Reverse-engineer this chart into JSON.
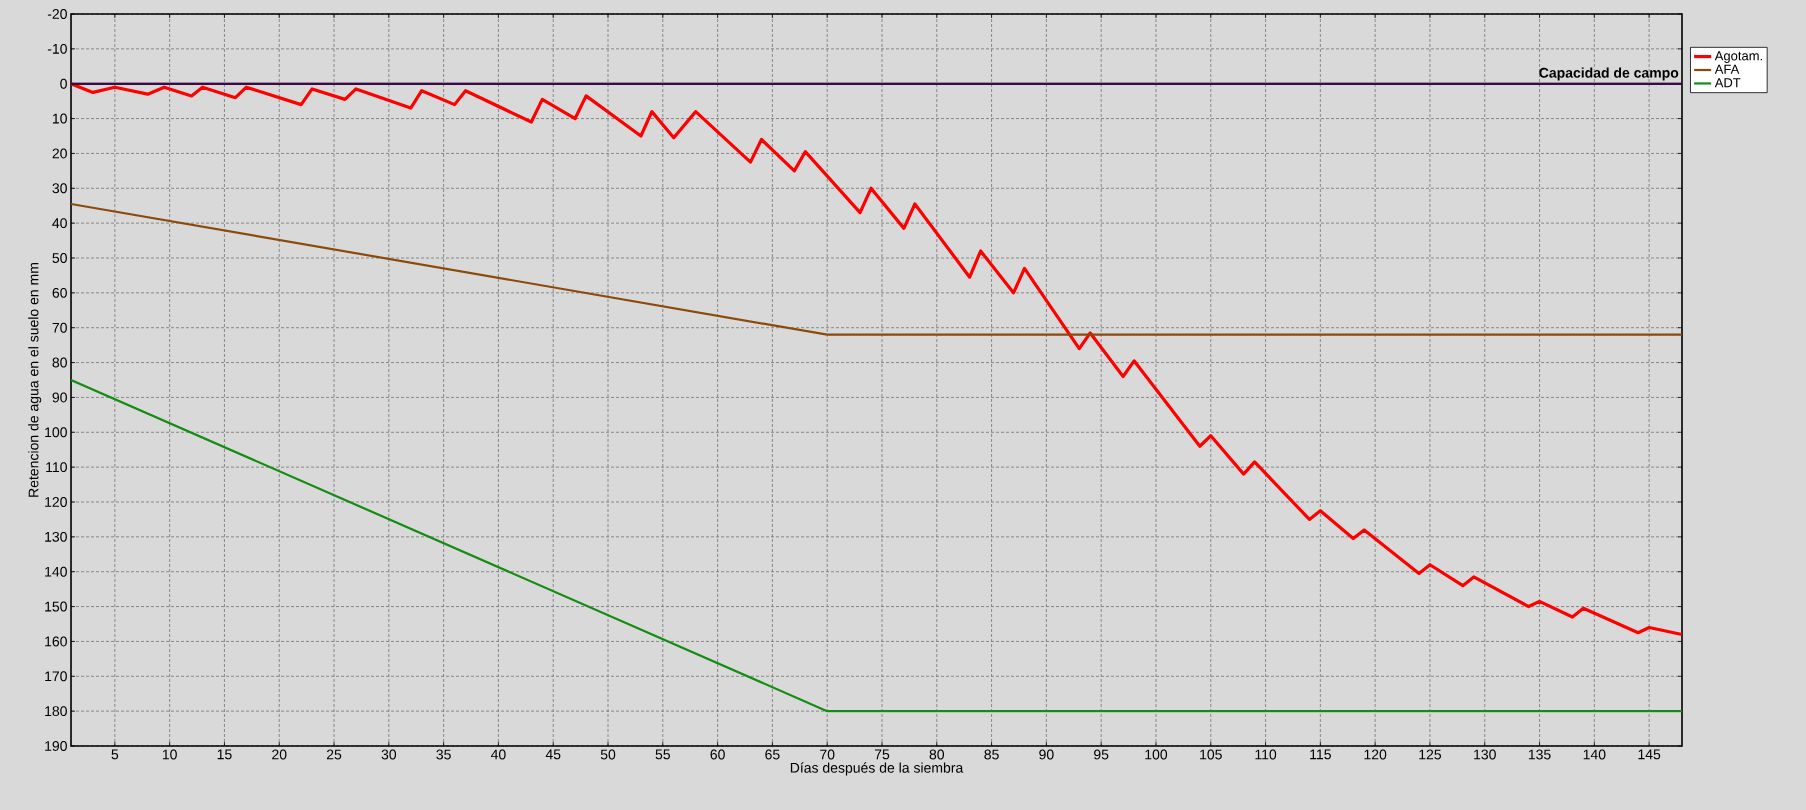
{
  "chart_data": {
    "type": "line",
    "xlabel": "Días después de la siembra",
    "ylabel": "Retencion de agua en el suelo en mm",
    "xlim": [
      1,
      148
    ],
    "ylim": [
      190,
      -20
    ],
    "xticks": [
      5,
      10,
      15,
      20,
      25,
      30,
      35,
      40,
      45,
      50,
      55,
      60,
      65,
      70,
      75,
      80,
      85,
      90,
      95,
      100,
      105,
      110,
      115,
      120,
      125,
      130,
      135,
      140,
      145
    ],
    "yticks": [
      -20,
      -10,
      0,
      10,
      20,
      30,
      40,
      50,
      60,
      70,
      80,
      90,
      100,
      110,
      120,
      130,
      140,
      150,
      160,
      170,
      180,
      190
    ],
    "grid": true,
    "legend": "top right",
    "ref_lines": [
      {
        "axis": "y",
        "value": 0,
        "label": "Capacidad de campo",
        "color": "#3c0a46"
      }
    ],
    "series": [
      {
        "name": "Agotam.",
        "color": "#ff0000",
        "x": [
          1,
          3,
          5,
          8,
          9.5,
          12,
          13,
          16,
          17,
          22,
          23,
          26,
          27,
          32,
          33,
          36,
          37,
          43,
          44,
          47,
          48,
          53,
          54,
          56,
          58,
          63,
          64,
          67,
          68,
          73,
          74,
          77,
          78,
          83,
          84,
          87,
          88,
          93,
          94,
          97,
          98,
          104,
          105,
          108,
          109,
          114,
          115,
          118,
          119,
          124,
          125,
          128,
          129,
          134,
          135,
          138,
          139,
          144,
          145,
          148
        ],
        "values": [
          0,
          2.5,
          1,
          3,
          1,
          3.5,
          1,
          4,
          1,
          6,
          1.5,
          4.5,
          1.5,
          7,
          2,
          6,
          2,
          11,
          4.5,
          10,
          3.5,
          15,
          8,
          15.5,
          8,
          22.5,
          16,
          25,
          19.5,
          37,
          30,
          41.5,
          34.5,
          55.5,
          48,
          60,
          53,
          76,
          71.5,
          84,
          79.5,
          104,
          101,
          112,
          108.5,
          125,
          122.5,
          130.5,
          128,
          140.5,
          138,
          144,
          141.5,
          150,
          148.5,
          153,
          150.5,
          157.5,
          156,
          158
        ]
      },
      {
        "name": "AFA",
        "color": "#8b4a0c",
        "x": [
          1,
          70,
          148
        ],
        "values": [
          34.5,
          72,
          72
        ]
      },
      {
        "name": "ADT",
        "color": "#148c14",
        "x": [
          1,
          70,
          148
        ],
        "values": [
          85,
          180,
          180
        ]
      }
    ]
  }
}
